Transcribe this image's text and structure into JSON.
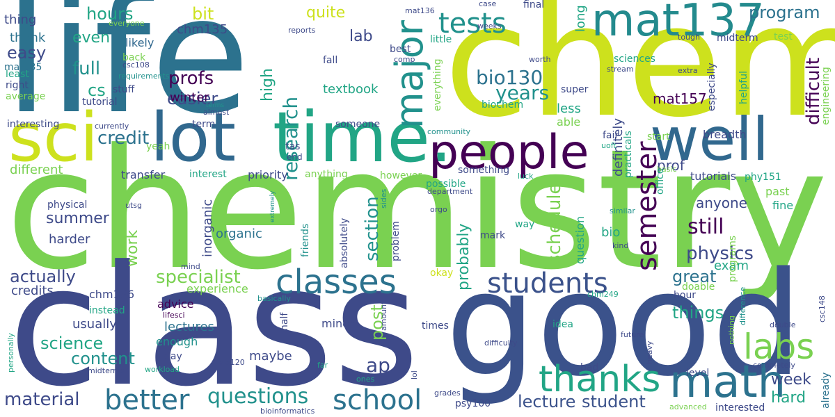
{
  "palette": {
    "purple": "#440154",
    "indigo": "#3b528b",
    "blue": "#31688e",
    "teal": "#21918c",
    "green": "#35b779",
    "lime": "#7ad151",
    "yellow": "#cde11d"
  },
  "words": {
    "life": "life",
    "chem": "chem",
    "chemistry": "chemistry",
    "class": "class",
    "good": "good",
    "sci": "sci",
    "lot": "lot",
    "time": "time.",
    "well": "well",
    "mat137": "mat137",
    "people": "people",
    "major": "major",
    "tests": "tests",
    "hours": "hours",
    "quite": "quite",
    "bit": "bit",
    "lab": "lab",
    "program": "program",
    "difficult": "difficult",
    "profs": "profs",
    "easier": "easier",
    "full": "full",
    "easy": "easy",
    "cs": "cs",
    "credit": "credit",
    "classes": "classes",
    "students": "students",
    "thanks": "thanks",
    "labs": "labs",
    "math": "math",
    "better": "better",
    "school": "school",
    "questions": "questions",
    "material": "material",
    "student": "student",
    "lecture": "lecture",
    "semester": "semester",
    "physics": "physics",
    "still": "still",
    "research": "research",
    "bio130": "bio130",
    "years": "years",
    "mat157": "mat157",
    "summer": "summer",
    "specialist": "specialist",
    "content": "content",
    "science": "science",
    "actually": "actually",
    "section": "section",
    "ap": "ap",
    "schedule": "schedule",
    "probably": "probably",
    "great": "great",
    "things": "things",
    "hard": "hard",
    "week": "week",
    "work": "work",
    "organic": "organic",
    "anyone": "anyone",
    "prof": "prof",
    "textbook": "textbook",
    "even": "even",
    "thing": "thing",
    "thank": "thank",
    "mat135": "mat135",
    "chm135": "chm135",
    "winter": "winter",
    "likely": "likely",
    "high": "high",
    "long": "long",
    "less": "less",
    "able": "able",
    "inorganic": "inorganic",
    "definitely": "definitely",
    "breadth": "breadth",
    "tutorials": "tutorials",
    "phy151": "phy151",
    "past": "past",
    "fine": "fine",
    "exam": "exam",
    "experience": "experience",
    "credits": "credits",
    "different": "different",
    "harder": "harder",
    "usually": "usually",
    "advice": "advice",
    "lectures": "lectures",
    "enough": "enough",
    "maybe": "maybe",
    "post": "post",
    "minor": "minor",
    "chm136": "chm136",
    "transfer": "transfer",
    "interest": "interest",
    "priority": "priority",
    "physical": "physical",
    "bio": "bio",
    "question": "question",
    "mark": "mark",
    "problem": "problem",
    "friends": "friends",
    "absolutely": "absolutely",
    "however": "however",
    "possible": "possible",
    "anything": "anything",
    "something": "something",
    "interesting": "interesting",
    "someone": "someone",
    "yeah": "yeah",
    "term": "term",
    "tas": "tas",
    "end": "end",
    "fair": "fair",
    "start": "start",
    "practicals": "practicals",
    "especially": "especially",
    "helpful": "helpful",
    "engineering": "engineering",
    "super": "super",
    "biochem": "biochem",
    "everything": "everything",
    "little": "little",
    "fall": "fall",
    "back": "back",
    "stuff": "stuff",
    "tutorial": "tutorial",
    "average": "average",
    "right": "right",
    "least": "least",
    "requirements": "requirements",
    "csc108": "csc108",
    "everyone": "everyone",
    "mat136": "mat136",
    "reports": "reports",
    "weeks": "weeks",
    "case": "case",
    "final": "final",
    "best": "best",
    "comp": "comp",
    "worth": "worth",
    "sciences": "sciences",
    "tough": "tough",
    "midterm": "midterm",
    "test": "test",
    "extra": "extra",
    "stream": "stream",
    "currently": "currently",
    "almost": "almost",
    "terms": "terms",
    "community": "community",
    "uoft": "uoft",
    "basic": "basic",
    "department": "department",
    "luck": "luck",
    "orgo": "orgo",
    "utsg": "utsg",
    "extremely": "extremely",
    "sides": "sides",
    "similar": "similar",
    "kind": "kind",
    "office": "office",
    "way": "way",
    "programs": "programs",
    "hour": "hour",
    "doable": "doable",
    "chm249": "chm249",
    "mind": "mind",
    "basically": "basically",
    "okay": "okay",
    "amount": "amount",
    "times": "times",
    "idea": "idea",
    "future": "future",
    "difficulty": "difficulty",
    "lifesci": "lifesci",
    "half": "half",
    "day": "day",
    "instead": "instead",
    "personally": "personally",
    "bio120": "bio120",
    "midterms": "midterms",
    "workload": "workload",
    "far": "far",
    "lol": "lol",
    "ones": "ones",
    "bad": "bad",
    "level": "level",
    "heavy": "heavy",
    "nothing": "nothing",
    "difference": "difference",
    "csc148": "csc148",
    "double": "double",
    "completely": "completely",
    "interested": "interested",
    "advanced": "advanced",
    "already": "already",
    "grades": "grades",
    "psy100": "psy100",
    "bioinformatics": "bioinformatics"
  }
}
